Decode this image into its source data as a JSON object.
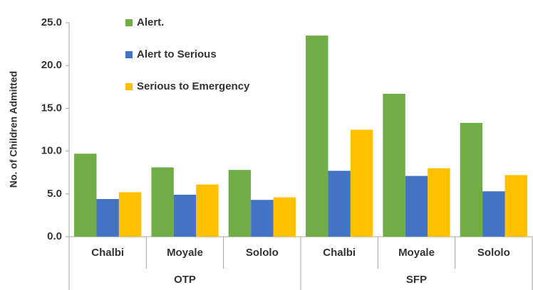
{
  "chart_data": {
    "type": "bar",
    "y_label": "No. of Children Admitted",
    "groups": [
      {
        "name": "OTP",
        "categories": [
          "Chalbi",
          "Moyale",
          "Sololo"
        ]
      },
      {
        "name": "SFP",
        "categories": [
          "Chalbi",
          "Moyale",
          "Sololo"
        ]
      }
    ],
    "series": [
      {
        "name": "Alert.",
        "color": "#70ad47",
        "values": [
          9.7,
          8.1,
          7.8,
          23.5,
          16.7,
          13.3
        ]
      },
      {
        "name": "Alert to Serious",
        "color": "#4472c4",
        "values": [
          4.4,
          4.9,
          4.3,
          7.7,
          7.1,
          5.3
        ]
      },
      {
        "name": "Serious to Emergency",
        "color": "#ffc000",
        "values": [
          5.2,
          6.1,
          4.6,
          12.5,
          8.0,
          7.2
        ]
      }
    ],
    "ylim": [
      0,
      25
    ],
    "yticks": [
      {
        "value": 0,
        "label": "0.0"
      },
      {
        "value": 5,
        "label": "5.0"
      },
      {
        "value": 10,
        "label": "10.0"
      },
      {
        "value": 15,
        "label": "15.0"
      },
      {
        "value": 20,
        "label": "20.0"
      },
      {
        "value": 25,
        "label": "25.0"
      }
    ],
    "grid": false,
    "legend": "upper left"
  }
}
